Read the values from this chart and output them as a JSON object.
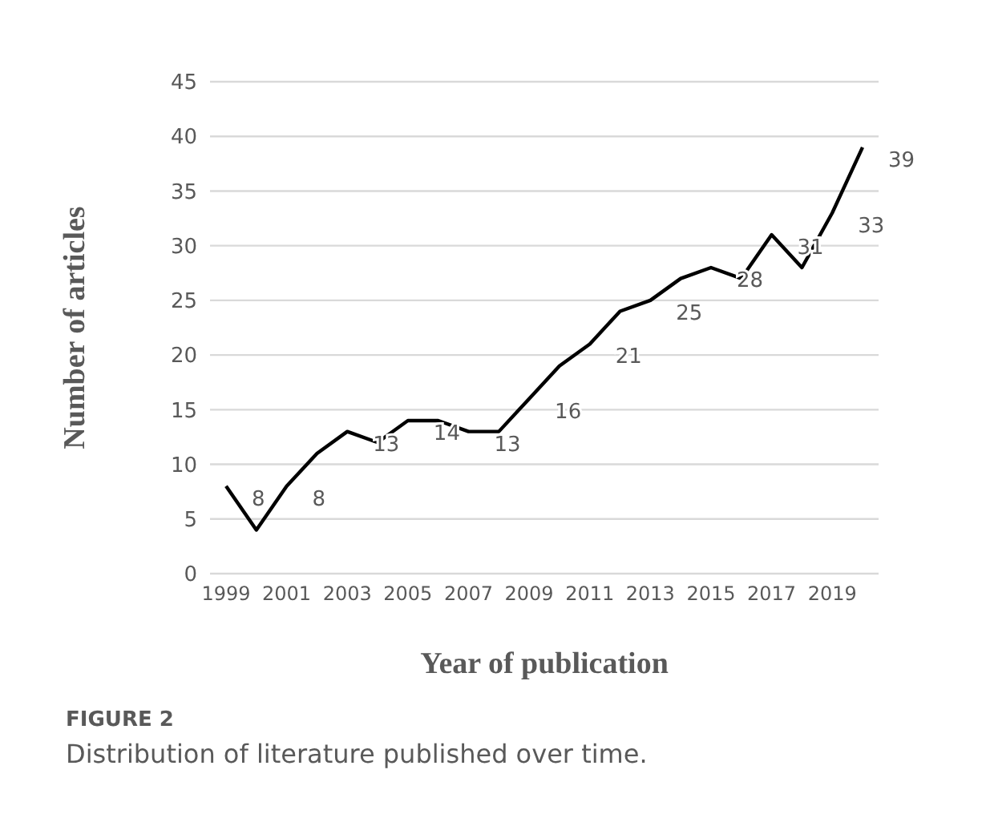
{
  "chart_data": {
    "type": "line",
    "xlabel": "Year of publication",
    "ylabel": "Number of articles",
    "categories": [
      "1999",
      null,
      "2001",
      null,
      "2003",
      null,
      "2005",
      null,
      "2007",
      null,
      "2009",
      null,
      "2011",
      null,
      "2013",
      null,
      "2015",
      null,
      "2017",
      null,
      "2019",
      null
    ],
    "series": [
      {
        "color": "#000000",
        "values": [
          8,
          4,
          8,
          11,
          13,
          12,
          14,
          14,
          13,
          13,
          16,
          19,
          21,
          24,
          25,
          27,
          28,
          27,
          31,
          28,
          33,
          39
        ],
        "value_labels": [
          "8",
          null,
          "8",
          null,
          "13",
          null,
          "14",
          null,
          "13",
          null,
          "16",
          null,
          "21",
          null,
          "25",
          null,
          "28",
          null,
          "31",
          null,
          "33",
          "39"
        ]
      }
    ],
    "ylim": [
      0,
      45
    ],
    "yticks": [
      0,
      5,
      10,
      15,
      20,
      25,
      30,
      35,
      40,
      45
    ],
    "grid": "y",
    "legend": false,
    "marker": "none",
    "line_style": "solid",
    "annotations": [
      "FIGURE 2",
      "Distribution of literature published over time."
    ]
  }
}
